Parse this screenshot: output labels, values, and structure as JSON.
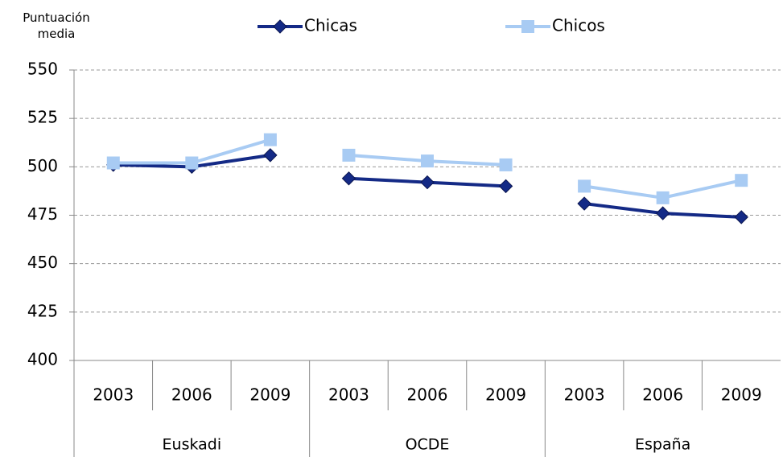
{
  "chart_data": {
    "type": "line",
    "y_label": "Puntuación media",
    "groups": [
      {
        "name": "Euskadi",
        "categories": [
          "2003",
          "2006",
          "2009"
        ]
      },
      {
        "name": "OCDE",
        "categories": [
          "2003",
          "2006",
          "2009"
        ]
      },
      {
        "name": "España",
        "categories": [
          "2003",
          "2006",
          "2009"
        ]
      }
    ],
    "series": [
      {
        "name": "Chicas",
        "color": "#142a86",
        "marker": "diamond",
        "values": [
          501,
          500,
          506,
          494,
          492,
          490,
          481,
          476,
          474
        ]
      },
      {
        "name": "Chicos",
        "color": "#a8cbf3",
        "marker": "square",
        "values": [
          502,
          502,
          514,
          506,
          503,
          501,
          490,
          484,
          493
        ]
      }
    ],
    "ylim": [
      400,
      550
    ],
    "yticks": [
      400,
      425,
      450,
      475,
      500,
      525,
      550
    ],
    "grid": true,
    "legend": "top"
  }
}
